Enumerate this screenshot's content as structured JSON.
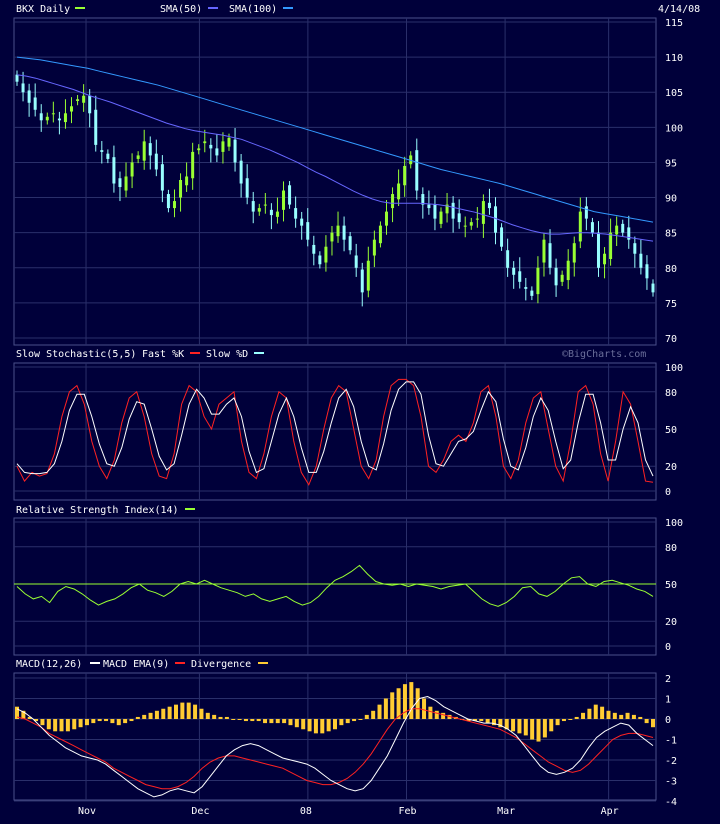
{
  "colors": {
    "background": "#00003a",
    "grid": "#2a2f6a",
    "border": "#4a4f8a",
    "up_candle": "#99ff33",
    "down_candle": "#99ffff",
    "sma50": "#6666ff",
    "sma100": "#3399ff",
    "fastK": "#ff2222",
    "slowD": "#ffffff",
    "rsi": "#99ff33",
    "macd": "#ffffff",
    "macd_ema": "#ff2222",
    "divergence": "#ffcc33"
  },
  "header": {
    "date": "4/14/08",
    "watermark": "©BigCharts.com"
  },
  "x_axis": {
    "month_labels": [
      "Nov",
      "Dec",
      "08",
      "Feb",
      "Mar",
      "Apr"
    ],
    "month_bar_index": [
      14,
      37,
      59,
      79,
      99,
      120
    ]
  },
  "chart_data": [
    {
      "type": "candlestick",
      "legend": [
        {
          "label": "BKX Daily",
          "color": "#99ff33"
        },
        {
          "label": "SMA(50)",
          "color": "#6666ff"
        },
        {
          "label": "SMA(100)",
          "color": "#3399ff"
        }
      ],
      "ylim": [
        70,
        115
      ],
      "y_ticks": [
        70,
        75,
        80,
        85,
        90,
        95,
        100,
        105,
        110,
        115
      ],
      "closes": [
        106.5,
        105,
        103.5,
        102.5,
        101,
        101.5,
        102,
        101,
        102,
        103,
        104,
        104.5,
        102,
        97.5,
        96.5,
        95.5,
        92,
        91.5,
        93,
        95,
        96,
        98,
        96,
        94,
        91,
        88.5,
        89.5,
        92.5,
        93,
        96.5,
        97,
        98,
        97,
        96,
        98,
        98.5,
        95,
        92,
        90,
        88,
        88.5,
        89,
        87.5,
        88,
        91,
        89,
        87,
        86,
        84,
        82,
        80.5,
        83,
        85,
        86,
        84,
        82.5,
        80,
        76.5,
        81,
        84,
        86,
        88,
        90.5,
        92,
        94.5,
        96,
        91,
        89,
        88.5,
        87,
        88,
        89,
        87,
        86.5,
        86,
        86.5,
        87,
        89.5,
        88.5,
        85,
        83,
        80,
        79,
        78,
        77,
        76,
        80,
        84,
        80,
        77.5,
        79,
        81,
        83.5,
        88,
        87,
        85,
        80,
        82,
        85,
        86,
        85,
        84,
        82,
        80,
        78.5,
        76.5
      ],
      "sma50": [
        107.5,
        107.3,
        107,
        106.6,
        106.2,
        105.8,
        105.4,
        104.9,
        104.4,
        104,
        103.6,
        103.1,
        102.6,
        102.1,
        101.6,
        101.1,
        100.6,
        100.2,
        99.8,
        99.5,
        99.3,
        99.1,
        98.9,
        98.6,
        98.3,
        97.8,
        97.3,
        96.8,
        96.2,
        95.6,
        95,
        94.3,
        93.6,
        93,
        92.3,
        91.6,
        90.9,
        90.3,
        89.8,
        89.4,
        89.2,
        89.2,
        89.2,
        89.2,
        89.1,
        89,
        88.8,
        88.5,
        88.2,
        87.9,
        87.5,
        87.1,
        86.6,
        86.1,
        85.7,
        85.3,
        85,
        84.8,
        84.8,
        84.9,
        85,
        85,
        84.9,
        84.8,
        84.6,
        84.4,
        84.2,
        84,
        83.8
      ],
      "sma100": [
        110,
        109.8,
        109.6,
        109.3,
        109,
        108.7,
        108.4,
        108,
        107.6,
        107.2,
        106.8,
        106.4,
        106,
        105.5,
        105,
        104.5,
        104,
        103.5,
        103,
        102.5,
        102,
        101.5,
        101,
        100.5,
        100,
        99.5,
        99,
        98.5,
        98,
        97.5,
        97,
        96.5,
        96,
        95.5,
        95,
        94.5,
        94,
        93.6,
        93.2,
        92.8,
        92.4,
        92,
        91.5,
        91,
        90.5,
        90,
        89.5,
        89,
        88.5,
        88,
        87.7,
        87.4,
        87.1,
        86.8,
        86.5
      ]
    },
    {
      "type": "line",
      "legend": [
        {
          "label": "Slow Stochastic(5,5)",
          "color": "#ffffff"
        },
        {
          "label": "Fast %K",
          "color": "#ff2222"
        },
        {
          "label": "Slow %D",
          "color": "#99ffff"
        }
      ],
      "ylim": [
        0,
        100
      ],
      "y_ticks": [
        0,
        20,
        50,
        80,
        100
      ],
      "fastK": [
        20,
        8,
        15,
        12,
        14,
        30,
        60,
        80,
        85,
        70,
        40,
        20,
        10,
        25,
        55,
        75,
        80,
        60,
        30,
        12,
        10,
        30,
        70,
        85,
        80,
        60,
        50,
        70,
        75,
        80,
        40,
        15,
        10,
        30,
        60,
        80,
        75,
        40,
        15,
        5,
        20,
        50,
        75,
        85,
        80,
        50,
        20,
        10,
        25,
        60,
        85,
        90,
        90,
        85,
        60,
        20,
        15,
        25,
        40,
        45,
        40,
        55,
        80,
        85,
        60,
        20,
        10,
        25,
        55,
        75,
        80,
        50,
        20,
        8,
        40,
        80,
        85,
        70,
        30,
        8,
        40,
        80,
        70,
        40,
        8,
        7
      ],
      "slowD": [
        22,
        15,
        14,
        14,
        15,
        22,
        40,
        65,
        78,
        78,
        60,
        38,
        22,
        20,
        35,
        58,
        72,
        70,
        50,
        28,
        17,
        22,
        45,
        70,
        82,
        75,
        62,
        62,
        70,
        75,
        60,
        32,
        15,
        18,
        40,
        62,
        75,
        60,
        35,
        15,
        15,
        32,
        55,
        75,
        82,
        68,
        40,
        20,
        17,
        38,
        65,
        82,
        88,
        88,
        78,
        45,
        22,
        20,
        30,
        40,
        42,
        48,
        65,
        80,
        72,
        42,
        20,
        17,
        35,
        60,
        75,
        65,
        40,
        18,
        25,
        55,
        78,
        78,
        55,
        25,
        25,
        50,
        68,
        55,
        25,
        12
      ]
    },
    {
      "type": "line",
      "legend": [
        {
          "label": "Relative Strength Index(14)",
          "color": "#99ff33"
        }
      ],
      "ylim": [
        0,
        100
      ],
      "y_ticks": [
        0,
        20,
        50,
        80,
        100
      ],
      "reference_line": 50,
      "rsi": [
        48,
        42,
        38,
        40,
        35,
        44,
        48,
        46,
        42,
        37,
        33,
        36,
        38,
        42,
        47,
        50,
        45,
        43,
        40,
        44,
        50,
        52,
        50,
        53,
        50,
        47,
        45,
        43,
        40,
        42,
        38,
        36,
        38,
        40,
        36,
        33,
        35,
        40,
        47,
        53,
        56,
        60,
        65,
        58,
        52,
        50,
        49,
        50,
        48,
        50,
        49,
        48,
        46,
        48,
        49,
        50,
        44,
        38,
        34,
        32,
        35,
        40,
        47,
        48,
        42,
        40,
        44,
        50,
        55,
        56,
        50,
        48,
        52,
        53,
        51,
        49,
        46,
        44,
        40
      ]
    },
    {
      "type": "bar+line",
      "legend": [
        {
          "label": "MACD(12,26)",
          "color": "#ffffff"
        },
        {
          "label": "MACD EMA(9)",
          "color": "#ffffff"
        },
        {
          "label": "Divergence",
          "color": "#ffcc33"
        }
      ],
      "ylim": [
        -4,
        2
      ],
      "y_ticks": [
        -4,
        -3,
        -2,
        -1,
        0,
        1,
        2
      ],
      "macd": [
        0.5,
        0.3,
        0,
        -0.4,
        -0.8,
        -1.1,
        -1.4,
        -1.6,
        -1.8,
        -1.9,
        -2,
        -2.2,
        -2.5,
        -2.8,
        -3.1,
        -3.4,
        -3.6,
        -3.8,
        -3.7,
        -3.5,
        -3.4,
        -3.5,
        -3.6,
        -3.3,
        -2.8,
        -2.3,
        -1.8,
        -1.5,
        -1.3,
        -1.2,
        -1.3,
        -1.5,
        -1.7,
        -1.9,
        -2,
        -2.1,
        -2.2,
        -2.4,
        -2.7,
        -3,
        -3.2,
        -3.4,
        -3.5,
        -3.4,
        -3,
        -2.4,
        -1.8,
        -1,
        -0.2,
        0.5,
        1,
        1.1,
        0.9,
        0.6,
        0.4,
        0.2,
        0,
        -0.1,
        -0.2,
        -0.2,
        -0.3,
        -0.5,
        -0.8,
        -1.3,
        -1.8,
        -2.3,
        -2.6,
        -2.7,
        -2.6,
        -2.4,
        -2,
        -1.4,
        -0.9,
        -0.6,
        -0.4,
        -0.2,
        -0.3,
        -0.7,
        -1,
        -1.3
      ],
      "macd_ema": [
        0.1,
        0,
        -0.2,
        -0.4,
        -0.7,
        -0.9,
        -1.1,
        -1.3,
        -1.5,
        -1.7,
        -1.9,
        -2.1,
        -2.4,
        -2.6,
        -2.8,
        -3,
        -3.2,
        -3.3,
        -3.4,
        -3.4,
        -3.3,
        -3.1,
        -2.8,
        -2.4,
        -2.1,
        -1.9,
        -1.8,
        -1.8,
        -1.9,
        -2,
        -2.1,
        -2.2,
        -2.3,
        -2.4,
        -2.6,
        -2.8,
        -3,
        -3.1,
        -3.2,
        -3.2,
        -3.1,
        -2.9,
        -2.6,
        -2.2,
        -1.7,
        -1.1,
        -0.5,
        0,
        0.3,
        0.5,
        0.5,
        0.4,
        0.3,
        0.2,
        0.1,
        0,
        -0.1,
        -0.2,
        -0.3,
        -0.4,
        -0.5,
        -0.7,
        -0.9,
        -1.2,
        -1.5,
        -1.8,
        -2.1,
        -2.3,
        -2.5,
        -2.6,
        -2.5,
        -2.2,
        -1.8,
        -1.4,
        -1,
        -0.8,
        -0.7,
        -0.7,
        -0.8,
        -0.9
      ],
      "divergence": [
        0.6,
        0.4,
        0.1,
        -0.1,
        -0.3,
        -0.5,
        -0.6,
        -0.6,
        -0.6,
        -0.5,
        -0.4,
        -0.3,
        -0.2,
        -0.1,
        -0.1,
        -0.2,
        -0.3,
        -0.2,
        -0.1,
        0.1,
        0.2,
        0.3,
        0.4,
        0.5,
        0.6,
        0.7,
        0.8,
        0.8,
        0.7,
        0.5,
        0.3,
        0.2,
        0.1,
        0.1,
        0,
        0,
        -0.1,
        -0.1,
        -0.1,
        -0.2,
        -0.2,
        -0.2,
        -0.2,
        -0.3,
        -0.4,
        -0.5,
        -0.6,
        -0.7,
        -0.7,
        -0.6,
        -0.5,
        -0.3,
        -0.2,
        -0.1,
        0,
        0.2,
        0.4,
        0.7,
        1,
        1.3,
        1.5,
        1.7,
        1.8,
        1.5,
        1,
        0.6,
        0.4,
        0.3,
        0.2,
        0.1,
        0,
        -0.1,
        -0.1,
        -0.1,
        -0.2,
        -0.3,
        -0.4,
        -0.5,
        -0.6,
        -0.7,
        -0.8,
        -1,
        -1.1,
        -0.9,
        -0.6,
        -0.3,
        -0.1,
        0,
        0.1,
        0.3,
        0.5,
        0.7,
        0.6,
        0.4,
        0.3,
        0.2,
        0.3,
        0.2,
        0.1,
        -0.2,
        -0.4
      ]
    }
  ]
}
